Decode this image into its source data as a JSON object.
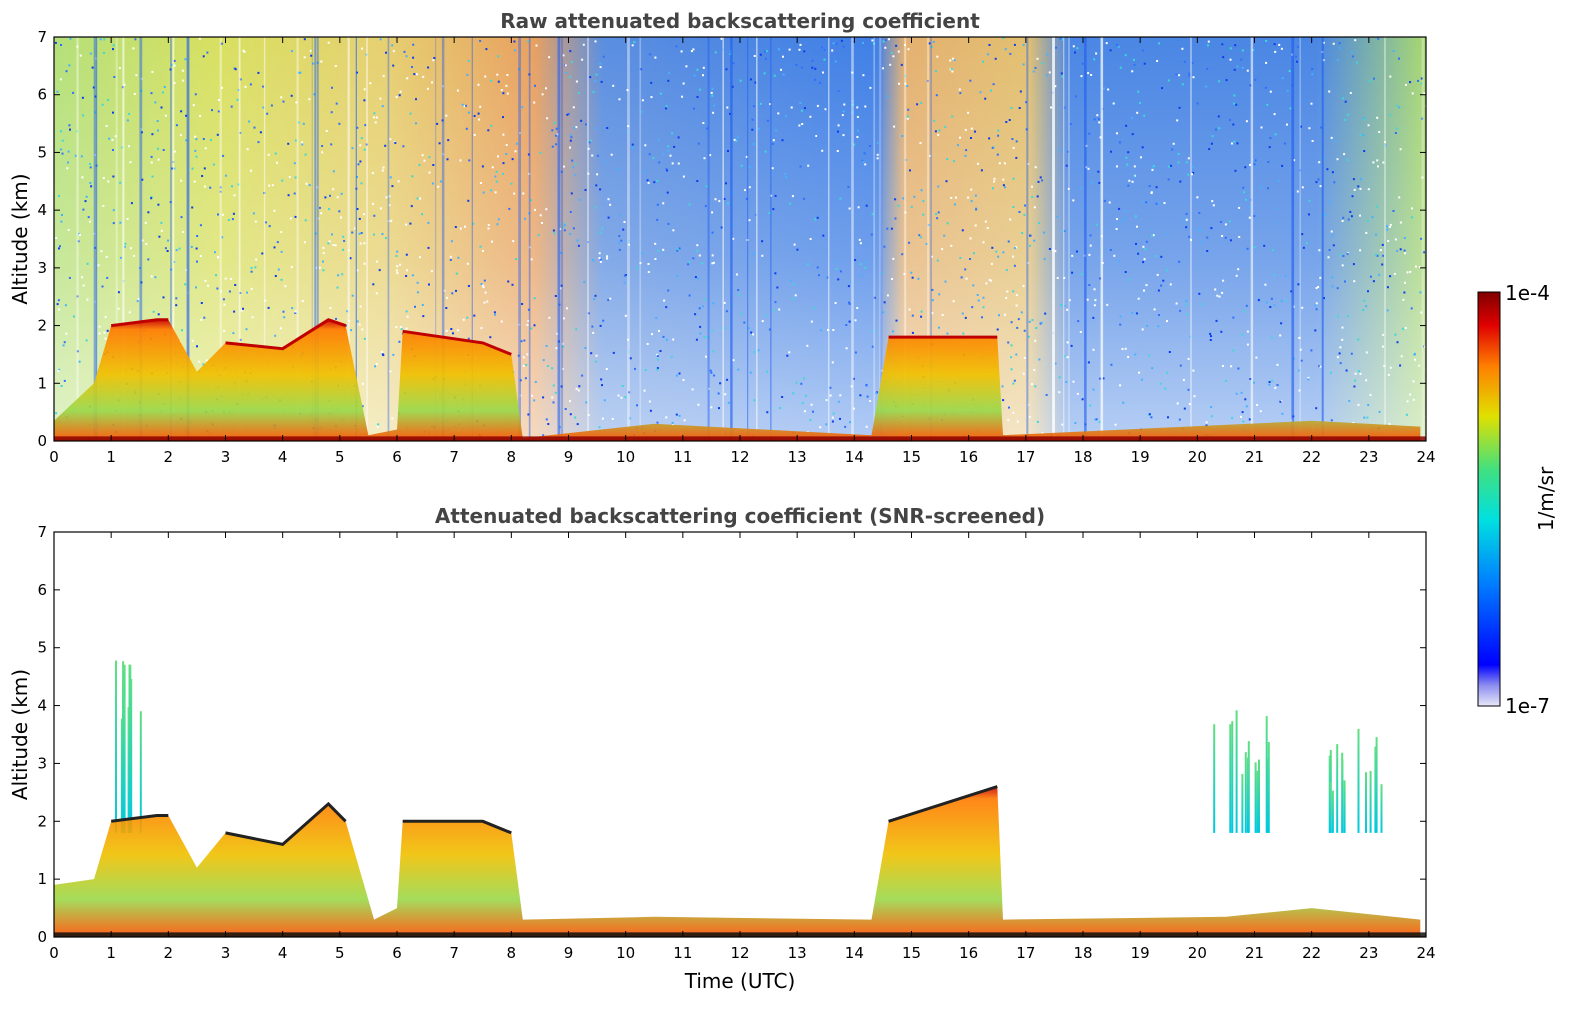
{
  "chart_data": [
    {
      "type": "heatmap",
      "title": "Raw attenuated backscattering coefficient",
      "xlabel": "",
      "ylabel": "Altitude (km)",
      "xlim": [
        0,
        24
      ],
      "ylim": [
        0,
        7
      ],
      "xticks": [
        "0",
        "1",
        "2",
        "3",
        "4",
        "5",
        "6",
        "7",
        "8",
        "9",
        "10",
        "11",
        "12",
        "13",
        "14",
        "15",
        "16",
        "17",
        "18",
        "19",
        "20",
        "21",
        "22",
        "23",
        "24"
      ],
      "yticks": [
        "0",
        "1",
        "2",
        "3",
        "4",
        "5",
        "6",
        "7"
      ],
      "grid": false,
      "layer_top_km": [
        {
          "x": 0.0,
          "y": 0.35
        },
        {
          "x": 0.7,
          "y": 1.0
        },
        {
          "x": 1.0,
          "y": 2.0
        },
        {
          "x": 1.8,
          "y": 2.1
        },
        {
          "x": 2.0,
          "y": 2.1
        },
        {
          "x": 2.5,
          "y": 1.2
        },
        {
          "x": 3.0,
          "y": 1.7
        },
        {
          "x": 4.0,
          "y": 1.6
        },
        {
          "x": 4.8,
          "y": 2.1
        },
        {
          "x": 5.1,
          "y": 2.0
        },
        {
          "x": 5.5,
          "y": 0.1
        },
        {
          "x": 6.0,
          "y": 0.2
        },
        {
          "x": 6.1,
          "y": 1.9
        },
        {
          "x": 7.5,
          "y": 1.7
        },
        {
          "x": 8.0,
          "y": 1.5
        },
        {
          "x": 8.2,
          "y": 0.05
        },
        {
          "x": 10.5,
          "y": 0.3
        },
        {
          "x": 14.3,
          "y": 0.1
        },
        {
          "x": 14.6,
          "y": 1.8
        },
        {
          "x": 16.5,
          "y": 1.8
        },
        {
          "x": 16.6,
          "y": 0.1
        },
        {
          "x": 22.0,
          "y": 0.35
        },
        {
          "x": 23.9,
          "y": 0.25
        }
      ]
    },
    {
      "type": "heatmap",
      "title": "Attenuated backscattering coefficient (SNR-screened)",
      "xlabel": "Time (UTC)",
      "ylabel": "Altitude (km)",
      "xlim": [
        0,
        24
      ],
      "ylim": [
        0,
        7
      ],
      "xticks": [
        "0",
        "1",
        "2",
        "3",
        "4",
        "5",
        "6",
        "7",
        "8",
        "9",
        "10",
        "11",
        "12",
        "13",
        "14",
        "15",
        "16",
        "17",
        "18",
        "19",
        "20",
        "21",
        "22",
        "23",
        "24"
      ],
      "yticks": [
        "0",
        "1",
        "2",
        "3",
        "4",
        "5",
        "6",
        "7"
      ],
      "grid": false,
      "layer_top_km": [
        {
          "x": 0.0,
          "y": 0.9
        },
        {
          "x": 0.7,
          "y": 1.0
        },
        {
          "x": 1.0,
          "y": 2.0
        },
        {
          "x": 1.8,
          "y": 2.1
        },
        {
          "x": 2.0,
          "y": 2.1
        },
        {
          "x": 2.5,
          "y": 1.2
        },
        {
          "x": 3.0,
          "y": 1.8
        },
        {
          "x": 4.0,
          "y": 1.6
        },
        {
          "x": 4.8,
          "y": 2.3
        },
        {
          "x": 5.1,
          "y": 2.0
        },
        {
          "x": 5.6,
          "y": 0.3
        },
        {
          "x": 6.0,
          "y": 0.5
        },
        {
          "x": 6.1,
          "y": 2.0
        },
        {
          "x": 7.5,
          "y": 2.0
        },
        {
          "x": 8.0,
          "y": 1.8
        },
        {
          "x": 8.2,
          "y": 0.3
        },
        {
          "x": 10.5,
          "y": 0.35
        },
        {
          "x": 14.3,
          "y": 0.3
        },
        {
          "x": 14.6,
          "y": 2.0
        },
        {
          "x": 16.5,
          "y": 2.6
        },
        {
          "x": 16.6,
          "y": 0.3
        },
        {
          "x": 20.5,
          "y": 0.35
        },
        {
          "x": 22.0,
          "y": 0.5
        },
        {
          "x": 23.9,
          "y": 0.3
        }
      ],
      "plume_top_km": [
        {
          "x": 1.3,
          "y": 4.8
        },
        {
          "x": 20.8,
          "y": 4.0
        },
        {
          "x": 22.7,
          "y": 3.6
        }
      ]
    }
  ],
  "colorbar": {
    "label": "1/m/sr",
    "max_label": "1e-4",
    "min_label": "1e-7",
    "scale": "log",
    "colormap": [
      "#e8e8f8",
      "#0000ff",
      "#0080ff",
      "#00e0e0",
      "#40e080",
      "#e0e000",
      "#ff8000",
      "#e00000",
      "#800000"
    ]
  }
}
